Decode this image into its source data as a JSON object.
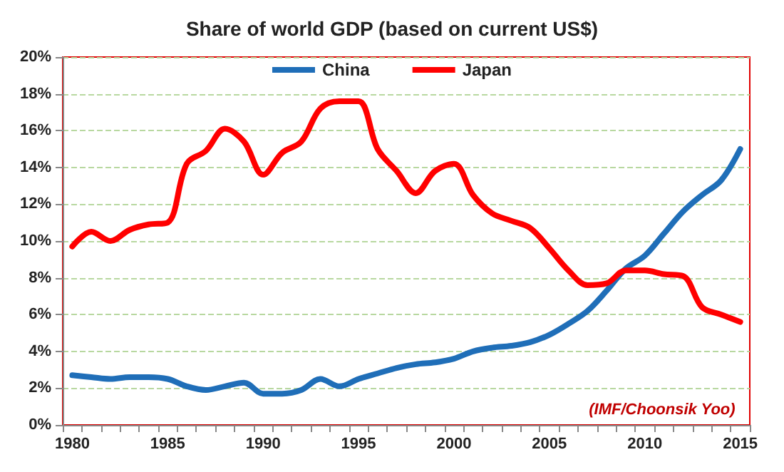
{
  "chart_data": {
    "type": "line",
    "title": "Share of world GDP (based on current US$)",
    "categories": [
      "1980",
      null,
      null,
      null,
      null,
      "1985",
      null,
      null,
      null,
      null,
      "1990",
      null,
      null,
      null,
      null,
      "1995",
      null,
      null,
      null,
      null,
      "2000",
      null,
      null,
      null,
      null,
      "2005",
      null,
      null,
      null,
      null,
      "2010",
      null,
      null,
      null,
      null,
      "2015"
    ],
    "series": [
      {
        "name": "China",
        "color": "#1f6eb8",
        "values": [
          2.7,
          2.6,
          2.5,
          2.6,
          2.6,
          2.5,
          2.1,
          1.9,
          2.1,
          2.3,
          1.7,
          1.7,
          1.9,
          2.5,
          2.1,
          2.5,
          2.8,
          3.1,
          3.3,
          3.4,
          3.6,
          4.0,
          4.2,
          4.3,
          4.5,
          4.9,
          5.5,
          6.2,
          7.3,
          8.5,
          9.2,
          10.4,
          11.6,
          12.5,
          13.3,
          15.0
        ]
      },
      {
        "name": "Japan",
        "color": "#ff0000",
        "values": [
          9.7,
          10.5,
          10.0,
          10.6,
          10.9,
          11.0,
          14.2,
          14.9,
          16.1,
          15.4,
          13.6,
          14.8,
          15.4,
          17.2,
          17.6,
          17.6,
          15.0,
          13.8,
          12.6,
          13.8,
          14.2,
          12.5,
          11.5,
          11.1,
          10.7,
          9.6,
          8.4,
          7.6,
          7.7,
          8.4,
          8.4,
          8.2,
          8.1,
          6.4,
          6.0,
          5.6
        ]
      }
    ],
    "ylim": [
      0,
      20
    ],
    "yticks": [
      {
        "value": 0,
        "label": "0%"
      },
      {
        "value": 2,
        "label": "2%"
      },
      {
        "value": 4,
        "label": "4%"
      },
      {
        "value": 6,
        "label": "6%"
      },
      {
        "value": 8,
        "label": "8%"
      },
      {
        "value": 10,
        "label": "10%"
      },
      {
        "value": 12,
        "label": "12%"
      },
      {
        "value": 14,
        "label": "14%"
      },
      {
        "value": 16,
        "label": "16%"
      },
      {
        "value": 18,
        "label": "18%"
      },
      {
        "value": 20,
        "label": "20%"
      }
    ],
    "grid": "y",
    "legend": "top",
    "marker": "none",
    "line_style": "solid",
    "annotations": [
      "(IMF/Choonsik Yoo)"
    ]
  }
}
